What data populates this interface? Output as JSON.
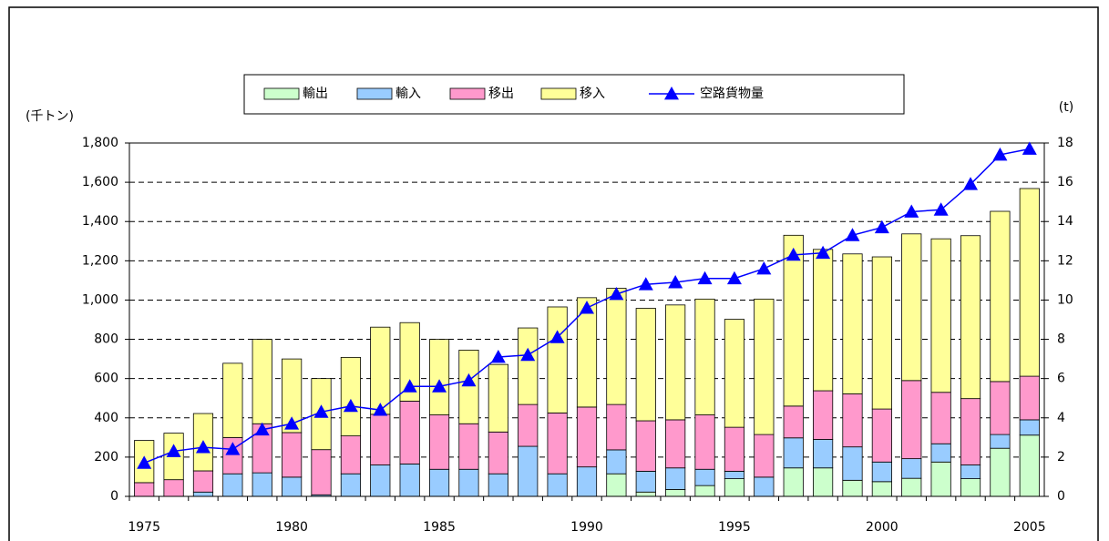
{
  "chart_data": {
    "type": "bar",
    "stacked": true,
    "y_label": "(千トン)",
    "y2_label": "(t)",
    "categories": [
      "1975",
      null,
      null,
      null,
      null,
      "1980",
      null,
      null,
      null,
      null,
      "1985",
      null,
      null,
      null,
      null,
      "1990",
      null,
      null,
      null,
      null,
      "1995",
      null,
      null,
      null,
      null,
      "2000",
      null,
      null,
      null,
      null,
      "2005"
    ],
    "series": [
      {
        "name": "輸出",
        "color": "#ccffcc",
        "values": [
          0,
          0,
          0,
          0,
          0,
          0,
          0,
          0,
          0,
          0,
          0,
          0,
          0,
          0,
          0,
          0,
          115,
          22,
          35,
          55,
          90,
          0,
          145,
          145,
          82,
          75,
          92,
          175,
          90,
          245,
          312
        ]
      },
      {
        "name": "輸入",
        "color": "#99ccff",
        "values": [
          0,
          0,
          22,
          115,
          120,
          98,
          8,
          115,
          160,
          165,
          138,
          138,
          115,
          255,
          115,
          150,
          122,
          106,
          110,
          83,
          38,
          98,
          153,
          145,
          170,
          100,
          100,
          93,
          70,
          70,
          78
        ]
      },
      {
        "name": "移出",
        "color": "#ff99cc",
        "values": [
          70,
          85,
          108,
          185,
          250,
          227,
          230,
          193,
          258,
          320,
          277,
          232,
          213,
          213,
          310,
          305,
          231,
          257,
          245,
          277,
          224,
          217,
          162,
          248,
          270,
          270,
          398,
          262,
          338,
          270,
          222
        ]
      },
      {
        "name": "移入",
        "color": "#ffff99",
        "values": [
          215,
          237,
          292,
          378,
          430,
          375,
          362,
          400,
          444,
          400,
          385,
          375,
          344,
          390,
          540,
          557,
          592,
          573,
          585,
          590,
          550,
          690,
          870,
          720,
          713,
          775,
          747,
          782,
          830,
          867,
          956
        ]
      },
      {
        "name": "空路貨物量",
        "color": "#0000ff",
        "type": "line",
        "axis": "y2",
        "marker": "triangle",
        "values": [
          1.7,
          2.3,
          2.5,
          2.4,
          3.4,
          3.7,
          4.3,
          4.6,
          4.4,
          5.6,
          5.6,
          5.9,
          7.1,
          7.2,
          8.1,
          9.6,
          10.3,
          10.8,
          10.9,
          11.1,
          11.1,
          11.6,
          12.3,
          12.4,
          13.3,
          13.7,
          14.5,
          14.6,
          15.9,
          17.4,
          17.7
        ]
      }
    ],
    "ylim": [
      0,
      1800
    ],
    "yticks": [
      0,
      200,
      400,
      600,
      800,
      {
        "value": 1000,
        "label": "1,000"
      },
      {
        "value": 1200,
        "label": "1,200"
      },
      {
        "value": 1400,
        "label": "1,400"
      },
      {
        "value": 1600,
        "label": "1,600"
      },
      {
        "value": 1800,
        "label": "1,800"
      }
    ],
    "y2lim": [
      0,
      18
    ],
    "y2ticks": [
      0,
      2,
      4,
      6,
      8,
      10,
      12,
      14,
      16,
      18
    ],
    "grid": true,
    "legend": "top"
  }
}
